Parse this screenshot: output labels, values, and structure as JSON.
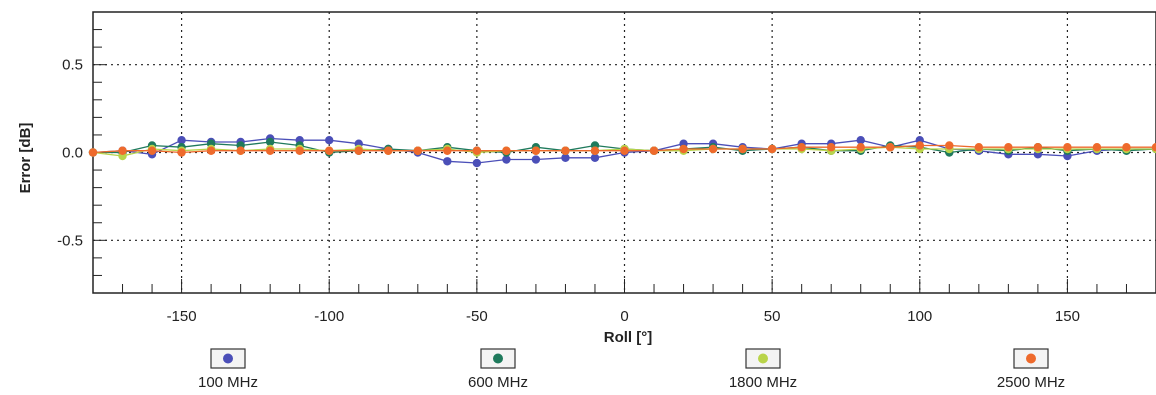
{
  "chart_data": {
    "type": "line",
    "xlabel": "Roll [°]",
    "ylabel": "Error [dB]",
    "xlim": [
      -180,
      180
    ],
    "ylim": [
      -0.8,
      0.8
    ],
    "x_ticks": [
      -150,
      -100,
      -50,
      0,
      50,
      100,
      150
    ],
    "x_tick_labels": [
      "-150",
      "-100",
      "-50",
      "0",
      "50",
      "100",
      "150"
    ],
    "y_ticks": [
      0.5,
      0.0,
      -0.5
    ],
    "y_tick_labels": [
      "0.5",
      "0.0",
      "-0.5"
    ],
    "grid": true,
    "legend_position": "bottom",
    "x": [
      -180,
      -170,
      -160,
      -150,
      -140,
      -130,
      -120,
      -110,
      -100,
      -90,
      -80,
      -70,
      -60,
      -50,
      -40,
      -30,
      -20,
      -10,
      0,
      10,
      20,
      30,
      40,
      50,
      60,
      70,
      80,
      90,
      100,
      110,
      120,
      130,
      140,
      150,
      160,
      170,
      180
    ],
    "series": [
      {
        "name": "100 MHz",
        "color": "#4b4fb8",
        "values": [
          0.0,
          0.01,
          -0.01,
          0.07,
          0.06,
          0.06,
          0.08,
          0.07,
          0.07,
          0.05,
          0.02,
          0.0,
          -0.05,
          -0.06,
          -0.04,
          -0.04,
          -0.03,
          -0.03,
          0.0,
          0.01,
          0.05,
          0.05,
          0.03,
          0.02,
          0.05,
          0.05,
          0.07,
          0.03,
          0.07,
          0.02,
          0.01,
          -0.01,
          -0.01,
          -0.02,
          0.01,
          0.02,
          0.02
        ]
      },
      {
        "name": "600 MHz",
        "color": "#1f7a5c",
        "values": [
          0.0,
          0.0,
          0.04,
          0.03,
          0.05,
          0.04,
          0.06,
          0.04,
          0.0,
          0.01,
          0.02,
          0.01,
          0.03,
          0.01,
          0.0,
          0.03,
          0.01,
          0.04,
          0.02,
          0.01,
          0.02,
          0.03,
          0.01,
          0.02,
          0.03,
          0.01,
          0.01,
          0.04,
          0.03,
          0.0,
          0.02,
          0.01,
          0.03,
          0.01,
          0.02,
          0.01,
          0.02
        ]
      },
      {
        "name": "1800 MHz",
        "color": "#b9d44a",
        "values": [
          0.0,
          -0.02,
          0.02,
          0.01,
          0.02,
          0.01,
          0.02,
          0.02,
          0.01,
          0.02,
          0.01,
          0.01,
          0.02,
          0.0,
          0.01,
          0.01,
          0.01,
          0.01,
          0.02,
          0.01,
          0.01,
          0.02,
          0.02,
          0.02,
          0.02,
          0.01,
          0.02,
          0.03,
          0.02,
          0.02,
          0.02,
          0.02,
          0.02,
          0.02,
          0.02,
          0.02,
          0.02
        ]
      },
      {
        "name": "2500 MHz",
        "color": "#ee6a2c",
        "values": [
          0.0,
          0.01,
          0.01,
          0.0,
          0.01,
          0.01,
          0.01,
          0.01,
          0.01,
          0.01,
          0.01,
          0.01,
          0.01,
          0.01,
          0.01,
          0.01,
          0.01,
          0.01,
          0.01,
          0.01,
          0.02,
          0.02,
          0.02,
          0.02,
          0.03,
          0.03,
          0.03,
          0.03,
          0.04,
          0.04,
          0.03,
          0.03,
          0.03,
          0.03,
          0.03,
          0.03,
          0.03
        ]
      }
    ]
  }
}
